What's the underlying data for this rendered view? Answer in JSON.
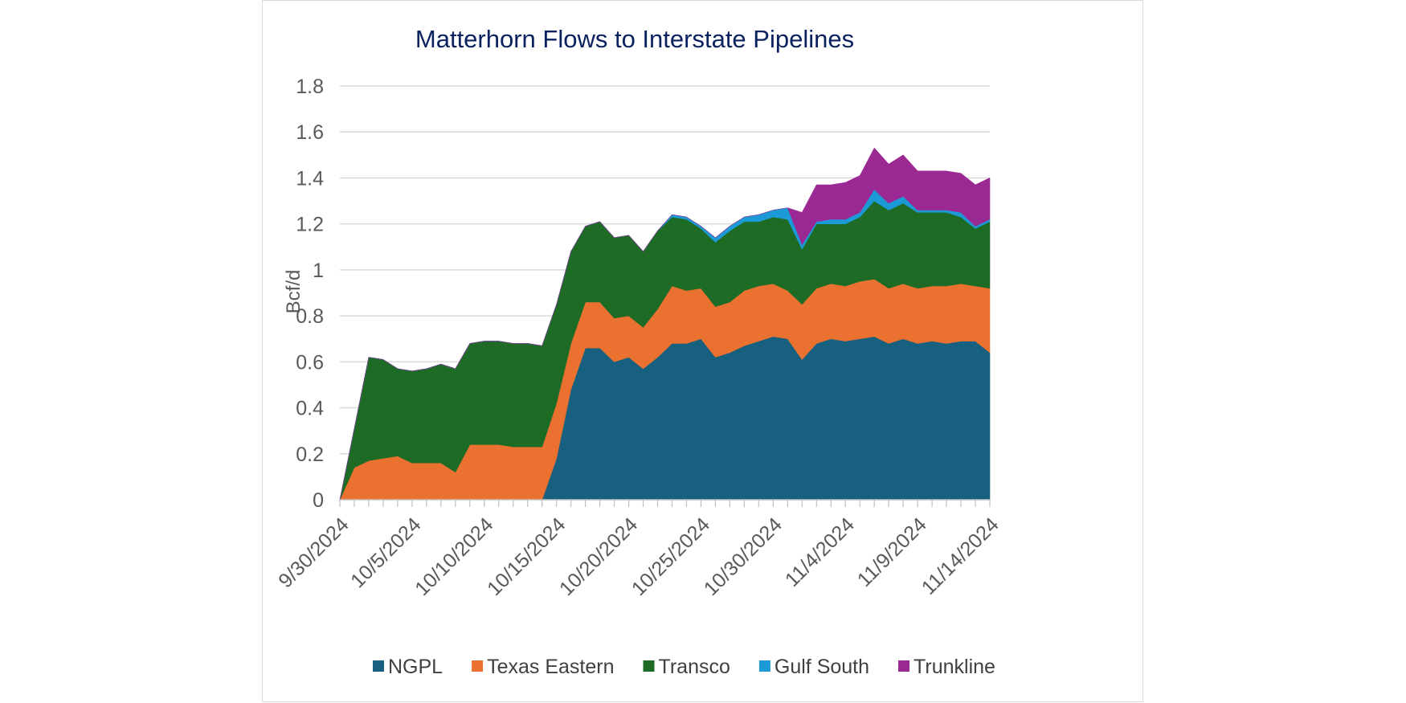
{
  "chart_data": {
    "type": "area",
    "stacked": true,
    "title": "Matterhorn Flows to Interstate Pipelines",
    "ylabel": "Bcf/d",
    "xlabel": "",
    "ylim": [
      0,
      1.8
    ],
    "y_ticks": [
      "0",
      "0.2",
      "0.4",
      "0.6",
      "0.8",
      "1",
      "1.2",
      "1.4",
      "1.6",
      "1.8"
    ],
    "grid": "horizontal",
    "legend_position": "bottom",
    "x_tick_labels": [
      "9/30/2024",
      "10/5/2024",
      "10/10/2024",
      "10/15/2024",
      "10/20/2024",
      "10/25/2024",
      "10/30/2024",
      "11/4/2024",
      "11/9/2024",
      "11/14/2024"
    ],
    "x": [
      "9/30/2024",
      "10/1/2024",
      "10/2/2024",
      "10/3/2024",
      "10/4/2024",
      "10/5/2024",
      "10/6/2024",
      "10/7/2024",
      "10/8/2024",
      "10/9/2024",
      "10/10/2024",
      "10/11/2024",
      "10/12/2024",
      "10/13/2024",
      "10/14/2024",
      "10/15/2024",
      "10/16/2024",
      "10/17/2024",
      "10/18/2024",
      "10/19/2024",
      "10/20/2024",
      "10/21/2024",
      "10/22/2024",
      "10/23/2024",
      "10/24/2024",
      "10/25/2024",
      "10/26/2024",
      "10/27/2024",
      "10/28/2024",
      "10/29/2024",
      "10/30/2024",
      "10/31/2024",
      "11/1/2024",
      "11/2/2024",
      "11/3/2024",
      "11/4/2024",
      "11/5/2024",
      "11/6/2024",
      "11/7/2024",
      "11/8/2024",
      "11/9/2024",
      "11/10/2024",
      "11/11/2024",
      "11/12/2024",
      "11/13/2024",
      "11/14/2024"
    ],
    "series": [
      {
        "name": "NGPL",
        "color": "#17607f",
        "values": [
          0,
          0,
          0,
          0,
          0,
          0,
          0,
          0,
          0,
          0,
          0,
          0,
          0,
          0,
          0,
          0.18,
          0.48,
          0.66,
          0.66,
          0.6,
          0.62,
          0.57,
          0.62,
          0.68,
          0.68,
          0.7,
          0.62,
          0.64,
          0.67,
          0.69,
          0.71,
          0.7,
          0.61,
          0.68,
          0.7,
          0.69,
          0.7,
          0.71,
          0.68,
          0.7,
          0.68,
          0.69,
          0.68,
          0.69,
          0.69,
          0.64
        ]
      },
      {
        "name": "Texas Eastern",
        "color": "#ea7130",
        "values": [
          0,
          0.14,
          0.17,
          0.18,
          0.19,
          0.16,
          0.16,
          0.16,
          0.12,
          0.24,
          0.24,
          0.24,
          0.23,
          0.23,
          0.23,
          0.24,
          0.2,
          0.2,
          0.2,
          0.19,
          0.18,
          0.18,
          0.21,
          0.25,
          0.23,
          0.22,
          0.22,
          0.22,
          0.24,
          0.24,
          0.23,
          0.21,
          0.24,
          0.24,
          0.24,
          0.24,
          0.25,
          0.25,
          0.24,
          0.24,
          0.24,
          0.24,
          0.25,
          0.25,
          0.24,
          0.28
        ]
      },
      {
        "name": "Transco",
        "color": "#1e6b26",
        "values": [
          0,
          0.17,
          0.45,
          0.43,
          0.38,
          0.4,
          0.41,
          0.43,
          0.45,
          0.44,
          0.45,
          0.45,
          0.45,
          0.45,
          0.44,
          0.43,
          0.4,
          0.33,
          0.35,
          0.35,
          0.35,
          0.33,
          0.34,
          0.3,
          0.31,
          0.26,
          0.28,
          0.31,
          0.3,
          0.28,
          0.29,
          0.31,
          0.24,
          0.28,
          0.26,
          0.27,
          0.28,
          0.34,
          0.34,
          0.35,
          0.33,
          0.32,
          0.32,
          0.29,
          0.25,
          0.29
        ]
      },
      {
        "name": "Gulf South",
        "color": "#1b9ad6",
        "values": [
          0,
          0,
          0,
          0,
          0,
          0,
          0,
          0,
          0,
          0,
          0,
          0,
          0,
          0,
          0,
          0,
          0,
          0,
          0,
          0,
          0,
          0,
          0,
          0.01,
          0.01,
          0.01,
          0.02,
          0.02,
          0.02,
          0.03,
          0.03,
          0.05,
          0.02,
          0.01,
          0.02,
          0.02,
          0.02,
          0.05,
          0.03,
          0.03,
          0.01,
          0.01,
          0.01,
          0.02,
          0.01,
          0.01
        ]
      },
      {
        "name": "Trunkline",
        "color": "#9b2993",
        "values": [
          0,
          0,
          0,
          0,
          0,
          0,
          0,
          0,
          0,
          0,
          0,
          0,
          0,
          0,
          0,
          0,
          0,
          0,
          0,
          0,
          0,
          0,
          0,
          0,
          0,
          0,
          0,
          0,
          0,
          0,
          0,
          0,
          0.14,
          0.16,
          0.15,
          0.16,
          0.16,
          0.18,
          0.17,
          0.18,
          0.17,
          0.17,
          0.17,
          0.17,
          0.18,
          0.18
        ]
      }
    ]
  }
}
